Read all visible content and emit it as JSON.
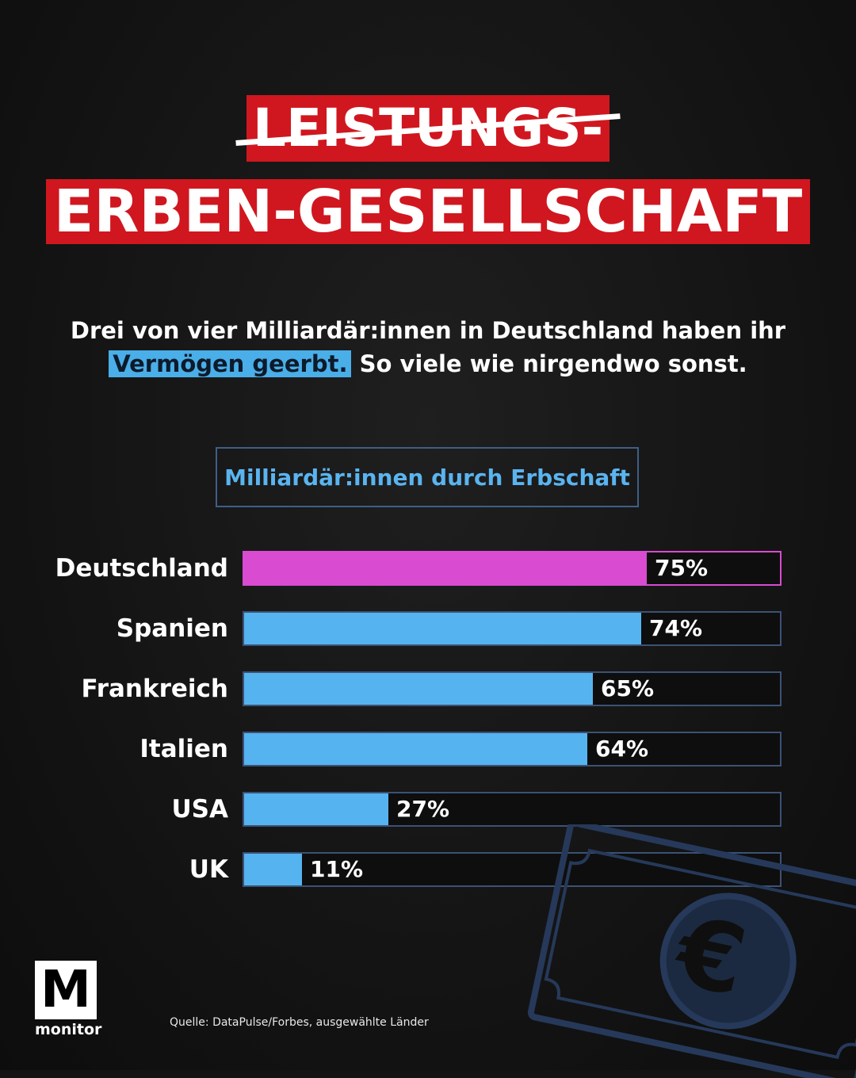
{
  "title": {
    "line1": "LEISTUNGS-",
    "line2": "ERBEN-GESELLSCHAFT"
  },
  "subtitle": {
    "part1": "Drei von vier Milliardär:innen in Deutschland haben ihr",
    "highlight": "Vermögen geerbt.",
    "part2": "So viele wie nirgendwo sonst."
  },
  "colors": {
    "title_red": "#d0171f",
    "bar_blue": "#55b4f0",
    "bar_highlight": "#d94bd1",
    "track_border": "#3b5275"
  },
  "chart_data": {
    "type": "bar",
    "orientation": "horizontal",
    "title": "Milliardär:innen durch Erbschaft",
    "xlabel": "",
    "ylabel": "",
    "xlim": [
      0,
      100
    ],
    "categories": [
      "Deutschland",
      "Spanien",
      "Frankreich",
      "Italien",
      "USA",
      "UK"
    ],
    "values": [
      75,
      74,
      65,
      64,
      27,
      11
    ],
    "value_labels": [
      "75%",
      "74%",
      "65%",
      "64%",
      "27%",
      "11%"
    ],
    "highlight_index": 0
  },
  "source": "Quelle: DataPulse/Forbes, ausgewählte Länder",
  "logo": {
    "letter": "M",
    "name": "monitor"
  },
  "decoration": {
    "icon": "euro-banknote-icon",
    "symbol": "€"
  }
}
